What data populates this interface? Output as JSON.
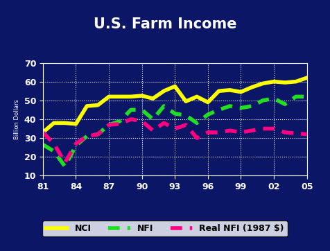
{
  "chart_data": {
    "type": "line",
    "title": "U.S. Farm Income",
    "y_label": "Billion Dollars",
    "categories": [
      "81",
      null,
      null,
      "84",
      null,
      null,
      "87",
      null,
      null,
      "90",
      null,
      null,
      "93",
      null,
      null,
      "96",
      null,
      null,
      "99",
      null,
      null,
      "02",
      null,
      null,
      "05"
    ],
    "series": [
      {
        "name": "NCI",
        "color": "#ffff00",
        "line_style": "solid",
        "values": [
          33,
          38,
          38,
          37.5,
          47,
          47.5,
          52,
          52,
          52,
          52.5,
          51,
          55,
          57.5,
          49.5,
          52,
          49,
          55,
          55.5,
          54.5,
          57,
          59,
          60,
          59.5,
          60,
          62
        ]
      },
      {
        "name": "NFI",
        "color": "#22dd22",
        "line_style": "dashed",
        "values": [
          26.5,
          23,
          15,
          26,
          31,
          32,
          37,
          39,
          45,
          45,
          40,
          47,
          43,
          42,
          38,
          42.5,
          45,
          47,
          46,
          47,
          50,
          51,
          48,
          52,
          52
        ]
      },
      {
        "name": "Real NFI (1987 $)",
        "color": "#ff0080",
        "line_style": "dashed",
        "values": [
          33,
          27,
          17,
          27,
          31,
          32,
          37,
          37.5,
          40,
          39,
          34,
          38,
          35,
          37,
          30,
          33,
          33,
          34,
          33,
          34,
          35,
          35,
          33,
          32.5,
          32
        ]
      }
    ],
    "ylim": [
      10,
      70
    ],
    "yticks": [
      10,
      20,
      30,
      40,
      50,
      60,
      70
    ],
    "grid": true,
    "legend": "lower center"
  }
}
